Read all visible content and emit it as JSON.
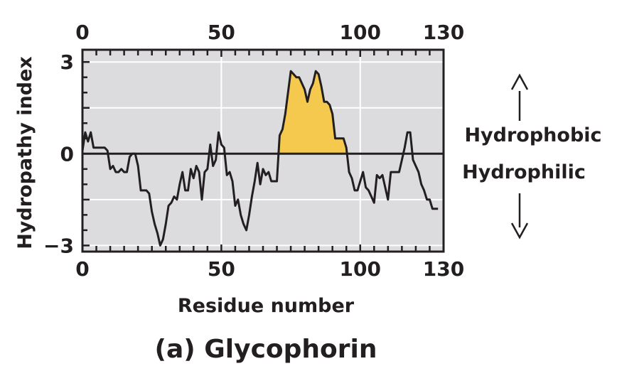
{
  "caption": "(a) Glycophorin",
  "annotations": {
    "upper": "Hydrophobic",
    "lower": "Hydrophilic"
  },
  "colors": {
    "plot_background": "#dcdcde",
    "grid": "#ffffff",
    "line": "#231f20",
    "hydrophobic_fill": "#f4c94e",
    "text": "#231f20"
  },
  "chart_data": {
    "type": "line",
    "xlabel": "Residue number",
    "ylabel": "Hydropathy index",
    "xlim": [
      0,
      130
    ],
    "ylim": [
      -3.2,
      3.4
    ],
    "x_ticks_bottom": [
      0,
      50,
      100,
      130
    ],
    "x_ticks_top": [
      0,
      50,
      100,
      130
    ],
    "y_ticks": [
      {
        "value": 3,
        "label": "3"
      },
      {
        "value": 0,
        "label": "0"
      },
      {
        "value": -3,
        "label": "−3"
      }
    ],
    "grid": true,
    "zero_line": true,
    "highlight_region": {
      "x_start": 71,
      "x_end": 95,
      "label": "hydrophobic segment above zero"
    },
    "series": [
      {
        "x": [
          0,
          1,
          2,
          3,
          4,
          5,
          6,
          7,
          8,
          9,
          10,
          11,
          12,
          13,
          14,
          15,
          16,
          17,
          18,
          19,
          20,
          21,
          22,
          23,
          24,
          25,
          26,
          27,
          28,
          29,
          30,
          31,
          32,
          33,
          34,
          35,
          36,
          37,
          38,
          39,
          40,
          41,
          42,
          43,
          44,
          45,
          46,
          47,
          48,
          49,
          50,
          51,
          52,
          53,
          54,
          55,
          56,
          57,
          58,
          59,
          60,
          61,
          62,
          63,
          64,
          65,
          66,
          67,
          68,
          69,
          70,
          71,
          72,
          73,
          74,
          75,
          76,
          77,
          78,
          79,
          80,
          81,
          82,
          83,
          84,
          85,
          86,
          87,
          88,
          89,
          90,
          91,
          92,
          93,
          94,
          95,
          96,
          97,
          98,
          99,
          100,
          101,
          102,
          103,
          104,
          105,
          106,
          107,
          108,
          109,
          110,
          111,
          112,
          113,
          114,
          115,
          116,
          117,
          118,
          119,
          120,
          121,
          122,
          123,
          124,
          125,
          126,
          127,
          128
        ],
        "y": [
          0.1,
          0.7,
          0.4,
          0.7,
          0.2,
          0.2,
          0.2,
          0.2,
          0.2,
          0.1,
          -0.5,
          -0.4,
          -0.6,
          -0.6,
          -0.5,
          -0.6,
          -0.6,
          -0.1,
          0.0,
          0.0,
          -0.4,
          -1.2,
          -1.2,
          -1.2,
          -1.3,
          -1.9,
          -2.3,
          -2.6,
          -3.0,
          -2.8,
          -2.3,
          -1.7,
          -1.6,
          -1.4,
          -1.5,
          -1.0,
          -0.6,
          -1.2,
          -1.2,
          -0.5,
          -0.8,
          -0.4,
          -0.6,
          -1.5,
          -0.6,
          -0.5,
          0.3,
          -0.4,
          -0.2,
          0.7,
          0.3,
          0.2,
          -0.7,
          -0.6,
          -0.9,
          -1.7,
          -1.5,
          -2.0,
          -2.3,
          -2.5,
          -2.0,
          -1.4,
          -0.9,
          -0.3,
          -1.0,
          -0.5,
          -0.7,
          -0.6,
          -0.9,
          -0.9,
          -0.9,
          0.6,
          0.8,
          1.3,
          2.0,
          2.7,
          2.6,
          2.5,
          2.5,
          2.3,
          2.1,
          1.7,
          2.1,
          2.3,
          2.7,
          2.6,
          2.2,
          1.7,
          1.7,
          1.6,
          1.3,
          0.5,
          0.5,
          0.5,
          0.5,
          0.2,
          -0.6,
          -0.8,
          -1.2,
          -1.2,
          -0.9,
          -0.6,
          -1.1,
          -1.2,
          -1.4,
          -1.6,
          -0.7,
          -0.8,
          -0.7,
          -1.1,
          -1.5,
          -0.6,
          -0.6,
          -0.6,
          -0.6,
          -0.2,
          0.2,
          0.7,
          0.7,
          -0.2,
          -0.4,
          -0.6,
          -1.0,
          -1.2,
          -1.5,
          -1.5,
          -1.8,
          -1.8,
          -1.8
        ]
      }
    ]
  }
}
